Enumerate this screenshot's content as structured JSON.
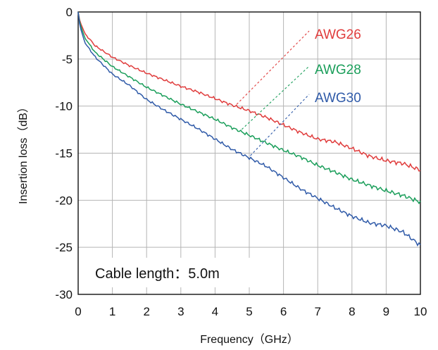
{
  "chart_data": {
    "type": "line",
    "xlabel": "Frequency（GHz）",
    "ylabel": "Insertion loss（dB）",
    "xlim": [
      0,
      10
    ],
    "ylim": [
      -30,
      0
    ],
    "xticks": [
      "0",
      "1",
      "2",
      "3",
      "4",
      "5",
      "6",
      "7",
      "8",
      "9",
      "10"
    ],
    "yticks": [
      "0",
      "-5",
      "-10",
      "-15",
      "-20",
      "-25",
      "-30"
    ],
    "grid": true,
    "annotation": "Cable length：5.0m",
    "series": [
      {
        "name": "AWG26",
        "color": "#e03c3c",
        "x": [
          0,
          0.05,
          0.2,
          0.5,
          1.0,
          1.5,
          2.0,
          2.5,
          3.0,
          3.5,
          4.0,
          4.5,
          5.0,
          5.5,
          6.0,
          6.5,
          7.0,
          7.5,
          8.0,
          8.5,
          9.0,
          9.5,
          10.0
        ],
        "y": [
          0,
          -1.0,
          -2.3,
          -3.6,
          -4.8,
          -5.7,
          -6.5,
          -7.2,
          -7.9,
          -8.5,
          -9.2,
          -9.9,
          -10.5,
          -11.2,
          -12.0,
          -12.8,
          -13.5,
          -13.8,
          -14.5,
          -15.3,
          -15.8,
          -16.1,
          -16.8
        ]
      },
      {
        "name": "AWG28",
        "color": "#1a9e5a",
        "x": [
          0,
          0.05,
          0.2,
          0.5,
          1.0,
          1.5,
          2.0,
          2.5,
          3.0,
          3.5,
          4.0,
          4.5,
          5.0,
          5.5,
          6.0,
          6.5,
          7.0,
          7.5,
          8.0,
          8.5,
          9.0,
          9.5,
          10.0
        ],
        "y": [
          0,
          -1.2,
          -2.8,
          -4.3,
          -5.8,
          -6.9,
          -8.0,
          -8.9,
          -9.8,
          -10.6,
          -11.4,
          -12.3,
          -13.1,
          -13.9,
          -14.7,
          -15.4,
          -16.3,
          -17.0,
          -17.8,
          -18.4,
          -19.0,
          -19.5,
          -20.2
        ]
      },
      {
        "name": "AWG30",
        "color": "#2f5aa8",
        "x": [
          0,
          0.05,
          0.2,
          0.5,
          1.0,
          1.5,
          2.0,
          2.5,
          3.0,
          3.5,
          4.0,
          4.5,
          5.0,
          5.5,
          6.0,
          6.5,
          7.0,
          7.5,
          8.0,
          8.5,
          9.0,
          9.5,
          10.0
        ],
        "y": [
          0,
          -1.5,
          -3.3,
          -4.8,
          -6.6,
          -7.8,
          -9.3,
          -10.4,
          -11.4,
          -12.4,
          -13.5,
          -14.6,
          -15.5,
          -16.4,
          -17.6,
          -18.8,
          -19.8,
          -20.8,
          -21.7,
          -22.4,
          -22.7,
          -23.4,
          -24.8
        ]
      }
    ]
  }
}
